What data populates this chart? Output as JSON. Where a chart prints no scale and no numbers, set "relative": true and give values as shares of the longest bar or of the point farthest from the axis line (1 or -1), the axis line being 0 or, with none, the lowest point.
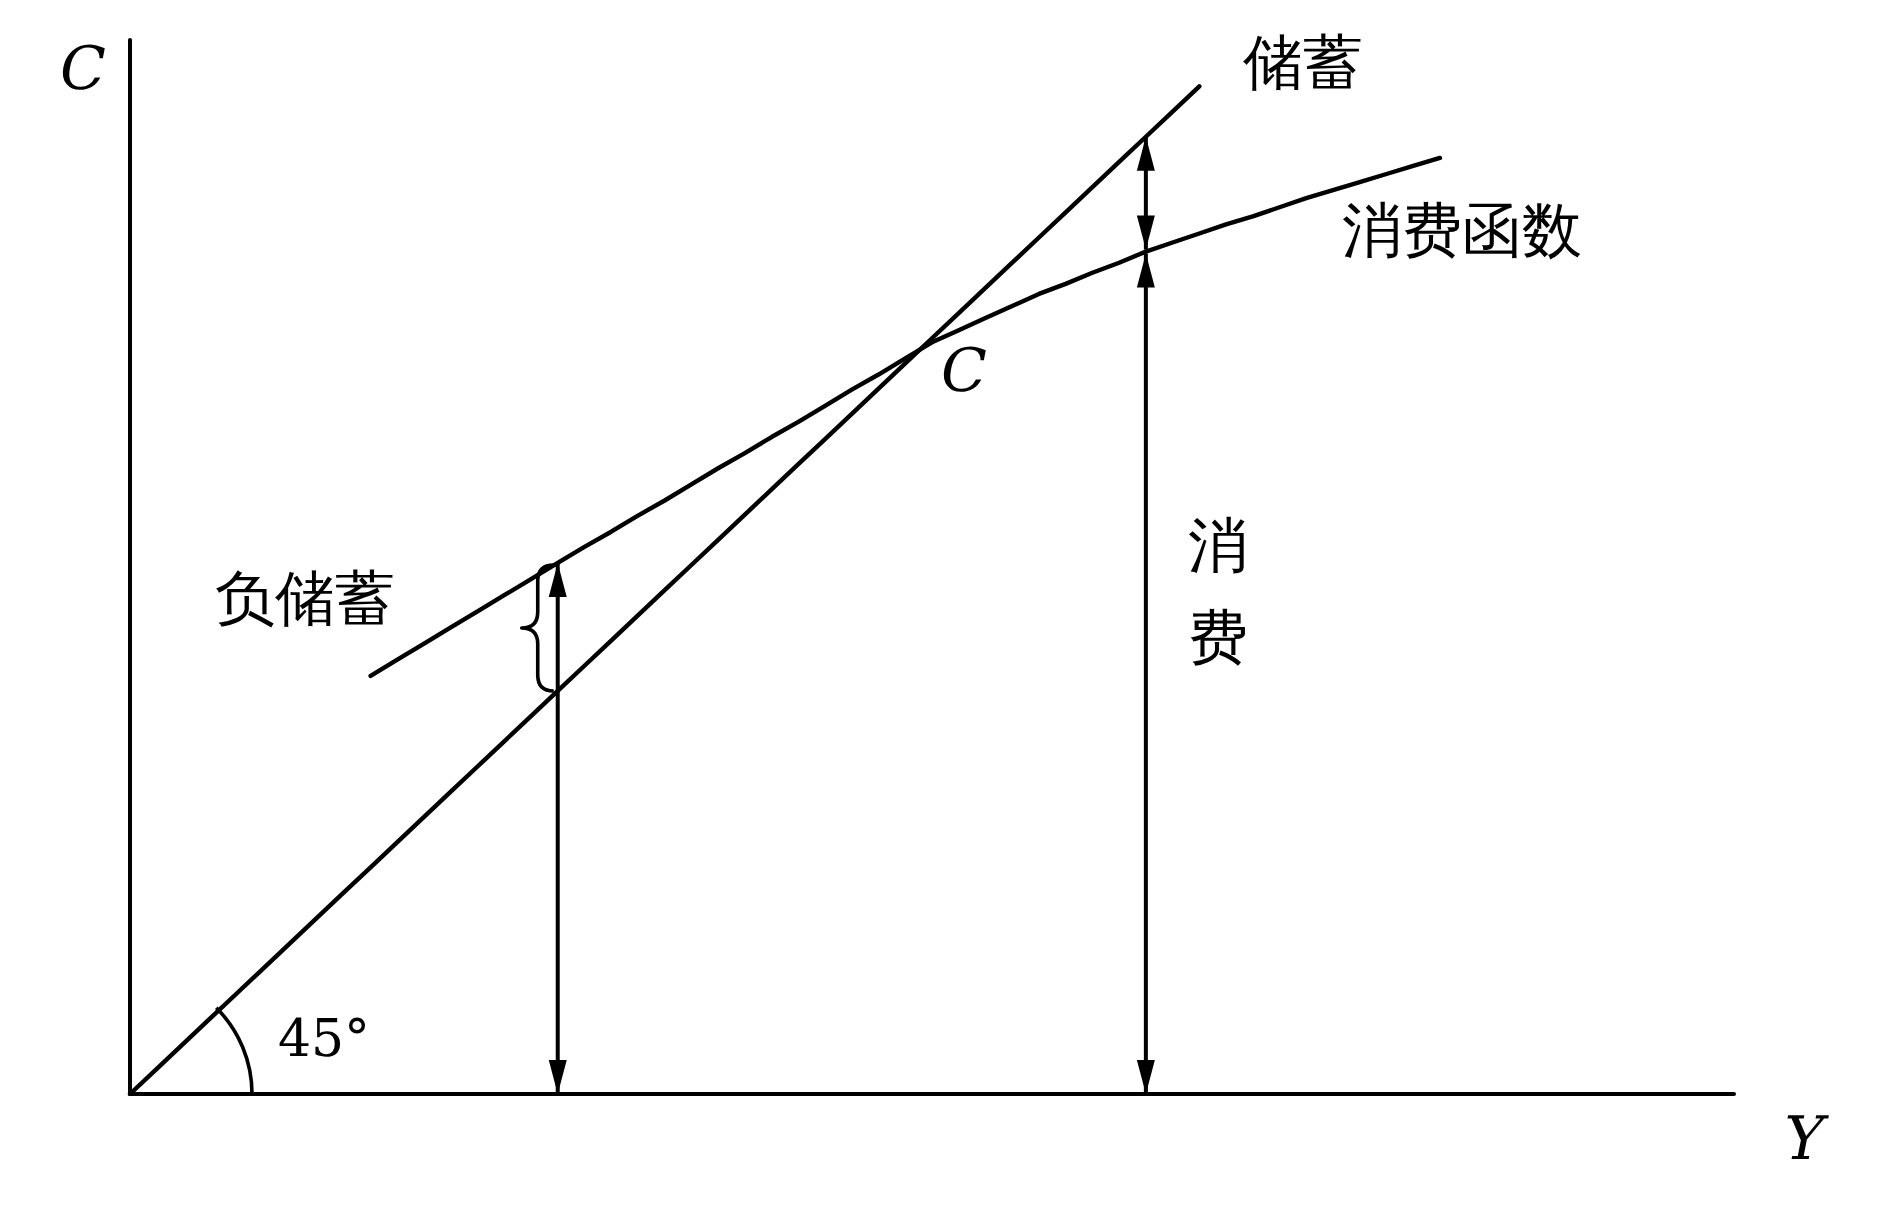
{
  "chart_data": {
    "type": "line",
    "xlabel": "Y",
    "ylabel": "C",
    "relative": true,
    "marker": "none",
    "categories": [
      null,
      null,
      null,
      null,
      null,
      null,
      null,
      null,
      null,
      null,
      null,
      null,
      null,
      null,
      null,
      null,
      null,
      null,
      null,
      null,
      null,
      null,
      null,
      null,
      null,
      null,
      null,
      null,
      null,
      null,
      null,
      null,
      null,
      null,
      null,
      null,
      null,
      null,
      null,
      null,
      null,
      null,
      null,
      null,
      null,
      null,
      null,
      null,
      null,
      null,
      null,
      null,
      null,
      null,
      null,
      null,
      null,
      null,
      null,
      null,
      null
    ],
    "series": [
      {
        "color": "#000000",
        "values": [
          0,
          0.025,
          0.05,
          0.075,
          0.1,
          0.125,
          0.15,
          0.175,
          0.2,
          0.225,
          0.25,
          0.275,
          0.3,
          0.325,
          0.35,
          0.375,
          0.4,
          0.425,
          0.45,
          0.475,
          0.5,
          0.525,
          0.55,
          0.575,
          0.6,
          0.625,
          0.65,
          0.675,
          0.7,
          0.725,
          0.75,
          0.775,
          0.8,
          0.825,
          0.85,
          0.875,
          0.9,
          0.925,
          0.95,
          0.975,
          1,
          null,
          null,
          null,
          null,
          null,
          null,
          null,
          null,
          null,
          null,
          null,
          null,
          null,
          null,
          null,
          null,
          null,
          null,
          null,
          null
        ]
      },
      {
        "name": "消费函数",
        "color": "#000000",
        "values": [
          null,
          null,
          null,
          null,
          null,
          null,
          null,
          null,
          null,
          0.415,
          0.431,
          0.447,
          0.463,
          0.479,
          0.495,
          0.511,
          0.527,
          0.543,
          0.558,
          0.574,
          0.589,
          0.605,
          0.621,
          0.636,
          0.652,
          0.667,
          0.683,
          0.699,
          0.714,
          0.73,
          0.746,
          0.758,
          0.77,
          0.782,
          0.794,
          0.804,
          0.815,
          0.825,
          0.836,
          0.845,
          0.854,
          0.863,
          0.871,
          0.88,
          0.889,
          0.897,
          0.905,
          0.913,
          0.921,
          0.929,
          null,
          null,
          null,
          null,
          null,
          null,
          null,
          null,
          null,
          null,
          null
        ]
      }
    ],
    "annotations": [
      "储蓄",
      "C",
      "负储蓄",
      "消费",
      "45°"
    ]
  }
}
